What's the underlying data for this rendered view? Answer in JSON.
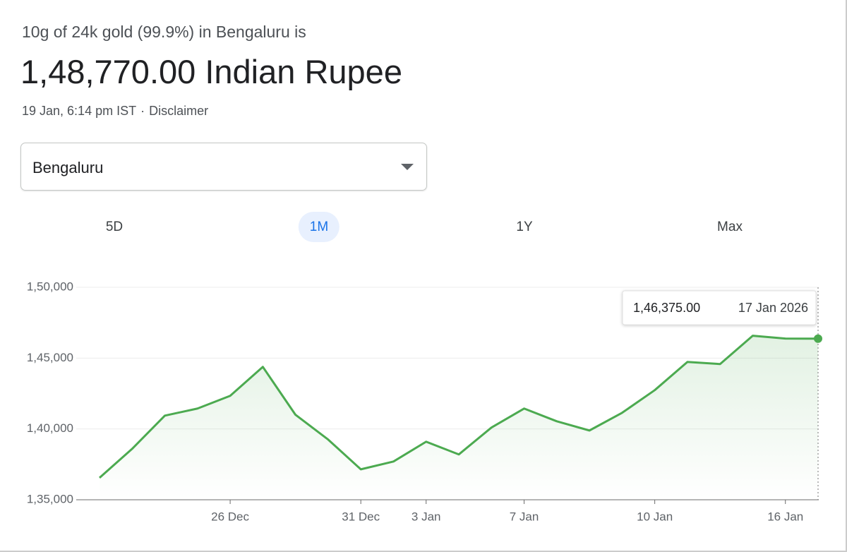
{
  "header": {
    "subtitle": "10g of 24k gold (99.9%) in Bengaluru is",
    "price": "1,48,770.00 Indian Rupee",
    "timestamp": "19 Jan, 6:14 pm IST",
    "separator": "·",
    "disclaimer": "Disclaimer"
  },
  "dropdown": {
    "selected": "Bengaluru"
  },
  "tabs": [
    "5D",
    "1M",
    "1Y",
    "Max"
  ],
  "selected_tab_index": 1,
  "chart_data": {
    "type": "line",
    "categories": [
      null,
      null,
      null,
      null,
      "26 Dec",
      null,
      null,
      null,
      "31 Dec",
      null,
      "3 Jan",
      null,
      null,
      "7 Jan",
      null,
      null,
      null,
      "10 Jan",
      null,
      null,
      null,
      "16 Jan",
      null
    ],
    "series": [
      {
        "color": "#4caa50",
        "values": [
          136550,
          138600,
          140940,
          141440,
          142340,
          144380,
          141000,
          139250,
          137150,
          137700,
          139100,
          138200,
          140100,
          141440,
          140540,
          139890,
          141140,
          142740,
          144730,
          144580,
          146580,
          146380,
          146375
        ],
        "value_labels": [
          null,
          null,
          null,
          null,
          null,
          null,
          null,
          null,
          null,
          null,
          null,
          null,
          null,
          null,
          null,
          null,
          null,
          null,
          null,
          null,
          null,
          null,
          "1,46,375.00"
        ]
      }
    ],
    "tooltip": {
      "date": "17 Jan 2026"
    },
    "ylim": [
      135000,
      150000
    ],
    "yticks": [
      {
        "value": 135000,
        "label": "1,35,000"
      },
      {
        "value": 140000,
        "label": "1,40,000"
      },
      {
        "value": 145000,
        "label": "1,45,000"
      },
      {
        "value": 150000,
        "label": "1,50,000"
      }
    ],
    "grid": true
  }
}
